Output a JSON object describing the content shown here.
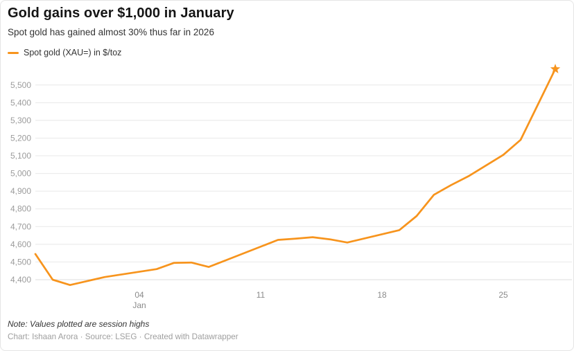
{
  "header": {
    "title": "Gold gains over $1,000 in January",
    "subtitle": "Spot gold has gained almost 30% thus far in 2026"
  },
  "legend": {
    "label": "Spot gold (XAU=) in $/toz",
    "swatch_color": "#f7941d"
  },
  "footer": {
    "note": "Note: Values plotted are session highs",
    "credit": "Chart: Ishaan Arora · Source: LSEG · Created with Datawrapper"
  },
  "colors": {
    "line": "#f7941d",
    "grid": "#e8e8e8",
    "grid_baseline": "#dcdcdc",
    "y_tick_text": "#9b9b9b",
    "x_tick_text": "#8a8a8a",
    "background": "#ffffff"
  },
  "chart_data": {
    "type": "line",
    "title": "Gold gains over $1,000 in January",
    "subtitle": "Spot gold has gained almost 30% thus far in 2026",
    "xlabel": "",
    "ylabel": "Spot gold (XAU=) in $/toz",
    "grid": "horizontal",
    "legend_position": "top-left",
    "ylim": [
      4350,
      5620
    ],
    "y_ticks": [
      4400,
      4500,
      4600,
      4700,
      4800,
      4900,
      5000,
      5100,
      5200,
      5300,
      5400,
      5500
    ],
    "y_tick_labels": [
      "4,400",
      "4,500",
      "4,600",
      "4,700",
      "4,800",
      "4,900",
      "5,000",
      "5,100",
      "5,200",
      "5,300",
      "5,400",
      "5,500"
    ],
    "x_ticks": [
      {
        "label": "04",
        "sublabel": "Jan",
        "day": 0
      },
      {
        "label": "11",
        "sublabel": "",
        "day": 7
      },
      {
        "label": "18",
        "sublabel": "",
        "day": 14
      },
      {
        "label": "25",
        "sublabel": "",
        "day": 21
      }
    ],
    "end_marker": "star",
    "series": [
      {
        "name": "Spot gold (XAU=) in $/toz",
        "color": "#f7941d",
        "points": [
          {
            "date": "Dec 29",
            "day": -6,
            "value": 4545
          },
          {
            "date": "Dec 30",
            "day": -5,
            "value": 4400
          },
          {
            "date": "Dec 31",
            "day": -4,
            "value": 4370
          },
          {
            "date": "Jan 2",
            "day": -2,
            "value": 4415
          },
          {
            "date": "Jan 5",
            "day": 1,
            "value": 4460
          },
          {
            "date": "Jan 6",
            "day": 2,
            "value": 4495
          },
          {
            "date": "Jan 7",
            "day": 3,
            "value": 4497
          },
          {
            "date": "Jan 8",
            "day": 4,
            "value": 4472
          },
          {
            "date": "Jan 9",
            "day": 5,
            "value": 4510
          },
          {
            "date": "Jan 12",
            "day": 8,
            "value": 4625
          },
          {
            "date": "Jan 13",
            "day": 9,
            "value": 4632
          },
          {
            "date": "Jan 14",
            "day": 10,
            "value": 4640
          },
          {
            "date": "Jan 15",
            "day": 11,
            "value": 4628
          },
          {
            "date": "Jan 16",
            "day": 12,
            "value": 4610
          },
          {
            "date": "Jan 19",
            "day": 15,
            "value": 4680
          },
          {
            "date": "Jan 20",
            "day": 16,
            "value": 4760
          },
          {
            "date": "Jan 21",
            "day": 17,
            "value": 4880
          },
          {
            "date": "Jan 22",
            "day": 18,
            "value": 4935
          },
          {
            "date": "Jan 23",
            "day": 19,
            "value": 4985
          },
          {
            "date": "Jan 25",
            "day": 21,
            "value": 5105
          },
          {
            "date": "Jan 26",
            "day": 22,
            "value": 5190
          },
          {
            "date": "Jan 27",
            "day": 23,
            "value": 5390
          },
          {
            "date": "Jan 28",
            "day": 24,
            "value": 5590
          }
        ]
      }
    ]
  }
}
